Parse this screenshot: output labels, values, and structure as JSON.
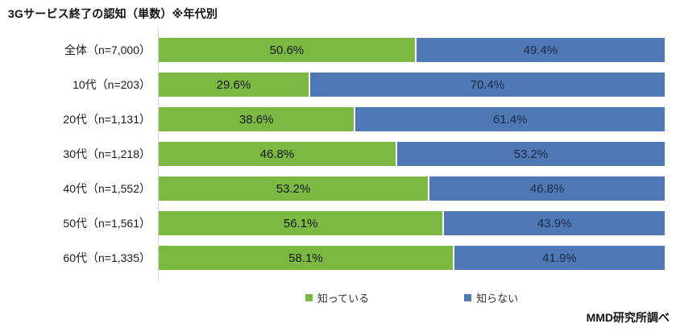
{
  "title": "3Gサービス終了の認知（単数）※年代別",
  "footer": "MMD研究所調べ",
  "colors": {
    "know": "#7CB942",
    "dont_know": "#4E79B4",
    "axis_line": "#D6D6D6"
  },
  "legend": {
    "items": [
      {
        "label": "知っている",
        "color": "#7CB942"
      },
      {
        "label": "知らない",
        "color": "#4E79B4"
      }
    ]
  },
  "chart_data": {
    "type": "bar",
    "stacked": true,
    "orientation": "horizontal",
    "title": "3Gサービス終了の認知（単数）※年代別",
    "categories": [
      "全体（n=7,000）",
      "10代（n=203）",
      "20代（n=1,131）",
      "30代（n=1,218）",
      "40代（n=1,552）",
      "50代（n=1,561）",
      "60代（n=1,335）"
    ],
    "series": [
      {
        "name": "知っている",
        "color": "#7CB942",
        "values": [
          50.6,
          29.6,
          38.6,
          46.8,
          53.2,
          56.1,
          58.1
        ],
        "labels": [
          "50.6%",
          "29.6%",
          "38.6%",
          "46.8%",
          "53.2%",
          "56.1%",
          "58.1%"
        ]
      },
      {
        "name": "知らない",
        "color": "#4E79B4",
        "values": [
          49.4,
          70.4,
          61.4,
          53.2,
          46.8,
          43.9,
          41.9
        ],
        "labels": [
          "49.4%",
          "70.4%",
          "61.4%",
          "53.2%",
          "46.8%",
          "43.9%",
          "41.9%"
        ]
      }
    ],
    "xlim": [
      0,
      100
    ],
    "grid": false,
    "legend_position": "bottom",
    "source_note": "MMD研究所調べ"
  }
}
